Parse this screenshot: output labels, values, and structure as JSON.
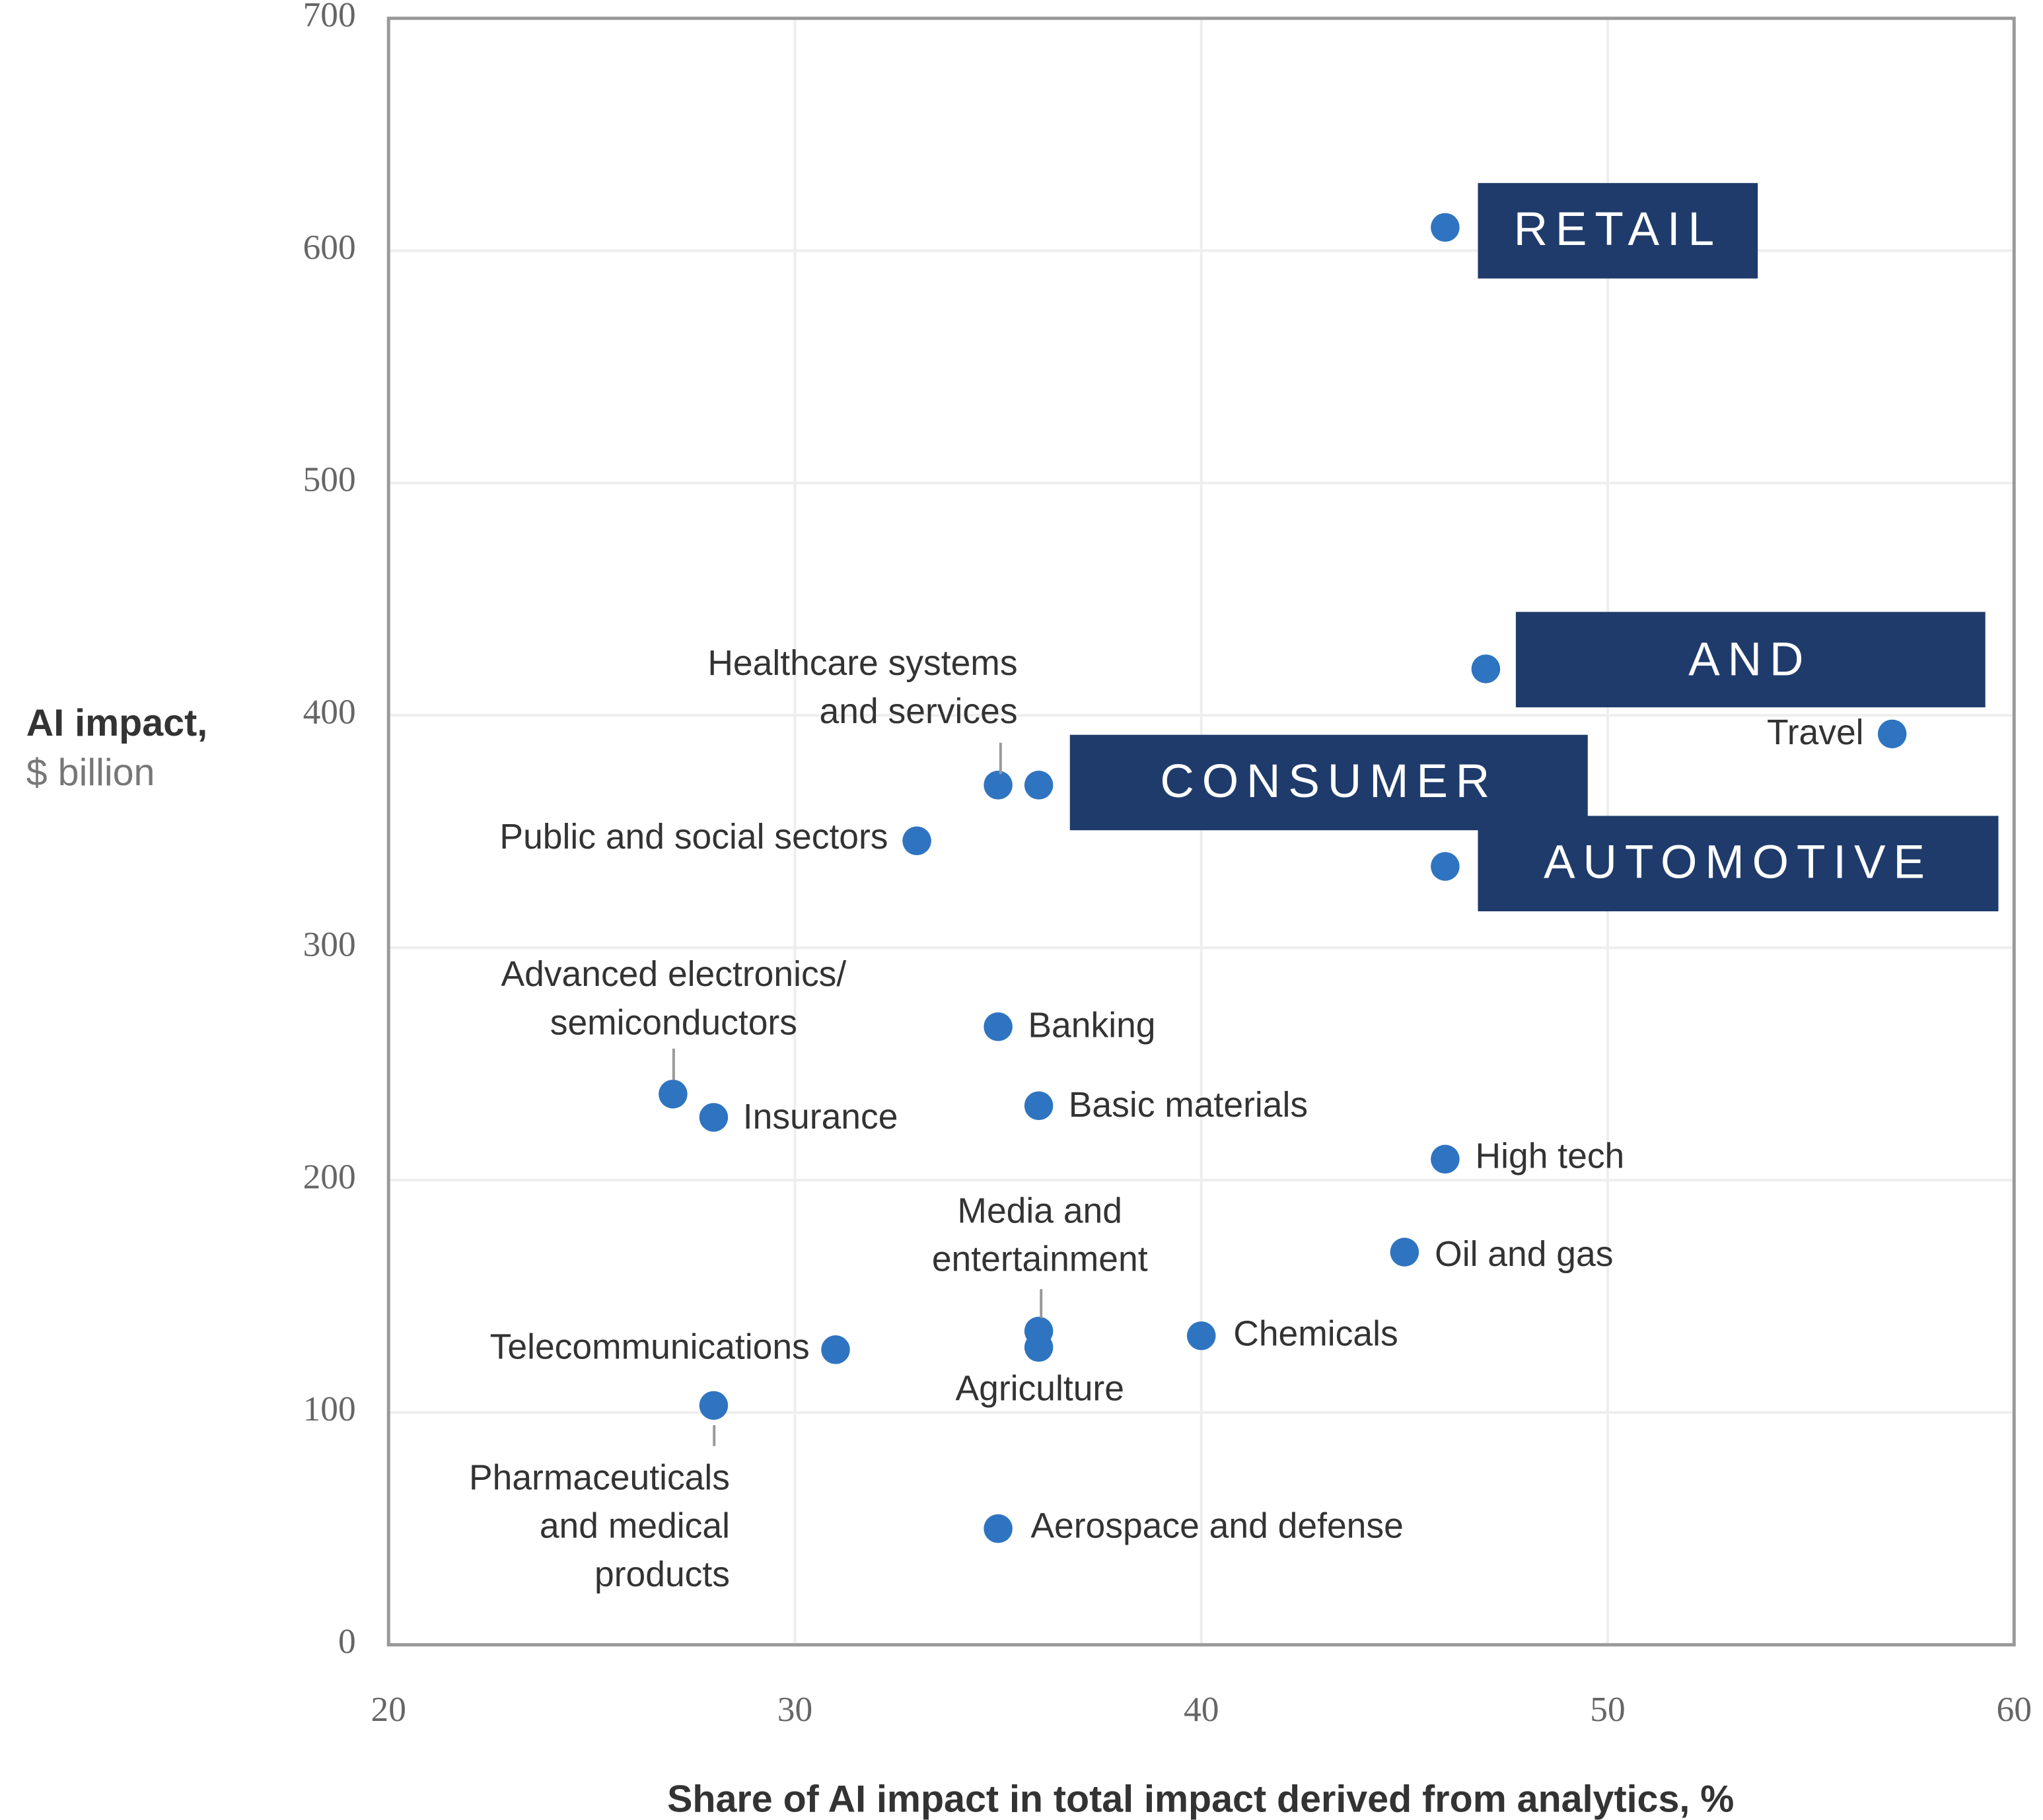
{
  "chart_data": {
    "type": "scatter",
    "x_label": "Share of AI impact in total impact derived from analytics, %",
    "y_label": [
      "AI impact,",
      "$ billion"
    ],
    "color": "#2f74c0",
    "x": [
      46,
      47,
      57,
      35,
      36,
      33,
      46,
      27,
      28,
      35,
      36,
      46,
      45,
      40,
      36,
      36,
      31,
      28,
      35
    ],
    "values": [
      610,
      420,
      392,
      370,
      370,
      346,
      335,
      237,
      227,
      266,
      232,
      209,
      169,
      133,
      135,
      128,
      127,
      103,
      50
    ],
    "labels": [
      [
        "RETAIL"
      ],
      [
        "AND"
      ],
      [
        "Travel"
      ],
      [
        "Healthcare systems",
        "and services"
      ],
      [
        "CONSUMER"
      ],
      [
        "Public and social sectors"
      ],
      [
        "AUTOMOTIVE"
      ],
      [
        "Advanced electronics/",
        "semiconductors"
      ],
      [
        "Insurance"
      ],
      [
        "Banking"
      ],
      [
        "Basic materials"
      ],
      [
        "High tech"
      ],
      [
        "Oil and gas"
      ],
      [
        "Chemicals"
      ],
      [
        "Media and",
        "entertainment"
      ],
      [
        "Agriculture"
      ],
      [
        "Telecommunications"
      ],
      [
        "Pharmaceuticals",
        "and medical",
        "products"
      ],
      [
        "Aerospace and defense"
      ]
    ],
    "xlim": [
      20,
      60
    ],
    "xticks": [
      20,
      30,
      40,
      50,
      60
    ],
    "ylim": [
      0,
      700
    ],
    "yticks": [
      0,
      100,
      200,
      300,
      400,
      500,
      600,
      700
    ],
    "grid": true
  }
}
